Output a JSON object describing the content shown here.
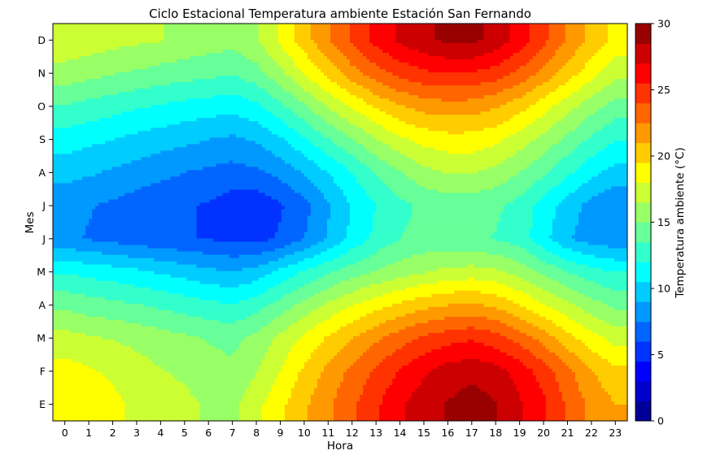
{
  "chart_data": {
    "type": "heatmap",
    "subtype": "filled-contour",
    "title": "Ciclo Estacional Temperatura ambiente Estación San Fernando",
    "xlabel": "Hora",
    "ylabel": "Mes",
    "colorbar_label": "Temperatura ambiente (°C)",
    "colormap": "jet",
    "x": [
      0,
      1,
      2,
      3,
      4,
      5,
      6,
      7,
      8,
      9,
      10,
      11,
      12,
      13,
      14,
      15,
      16,
      17,
      18,
      19,
      20,
      21,
      22,
      23
    ],
    "x_tick_labels": [
      "0",
      "1",
      "2",
      "3",
      "4",
      "5",
      "6",
      "7",
      "8",
      "9",
      "10",
      "11",
      "12",
      "13",
      "14",
      "15",
      "16",
      "17",
      "18",
      "19",
      "20",
      "21",
      "22",
      "23"
    ],
    "y_tick_labels": [
      "E",
      "F",
      "M",
      "A",
      "M",
      "J",
      "J",
      "A",
      "S",
      "O",
      "N",
      "D"
    ],
    "zlim": [
      0,
      30
    ],
    "colorbar_ticks": [
      0,
      5,
      10,
      15,
      20,
      25,
      30
    ],
    "contour_levels": [
      0,
      1.5,
      3,
      4.5,
      6,
      7.5,
      9,
      10.5,
      12,
      13.5,
      15,
      16.5,
      18,
      19.5,
      21,
      22.5,
      24,
      25.5,
      27,
      28.5,
      30
    ],
    "values": [
      [
        19.4,
        18.9,
        18.4,
        17.6,
        17.3,
        16.9,
        16.3,
        16.1,
        17.6,
        19.1,
        20.7,
        22.2,
        23.7,
        25.2,
        26.8,
        27.8,
        28.6,
        29.2,
        28.6,
        27.2,
        25.8,
        23.8,
        22.1,
        21.0
      ],
      [
        18.6,
        18.2,
        17.7,
        17.1,
        16.6,
        16.2,
        15.6,
        15.3,
        16.4,
        18.0,
        19.8,
        21.4,
        22.9,
        24.3,
        25.6,
        26.8,
        27.7,
        28.1,
        27.6,
        26.4,
        24.8,
        22.9,
        21.1,
        19.8
      ],
      [
        17.1,
        16.7,
        16.4,
        16.1,
        15.7,
        15.3,
        14.9,
        14.6,
        15.4,
        16.9,
        18.3,
        19.7,
        21.0,
        22.2,
        23.3,
        24.3,
        24.9,
        25.3,
        24.6,
        23.4,
        21.9,
        20.1,
        18.6,
        17.4
      ],
      [
        14.6,
        14.2,
        13.9,
        13.6,
        13.2,
        12.8,
        12.4,
        12.1,
        12.9,
        14.1,
        15.5,
        16.8,
        17.9,
        18.9,
        19.8,
        20.5,
        21.0,
        21.3,
        20.7,
        19.5,
        18.1,
        16.8,
        15.6,
        14.6
      ],
      [
        11.9,
        11.5,
        11.2,
        10.8,
        10.3,
        9.9,
        9.4,
        9.0,
        9.6,
        10.9,
        12.2,
        13.3,
        14.3,
        15.1,
        15.8,
        16.4,
        16.9,
        17.1,
        16.8,
        15.9,
        14.7,
        13.5,
        12.6,
        12.0
      ],
      [
        7.8,
        7.4,
        7.0,
        6.7,
        6.4,
        6.1,
        5.9,
        5.7,
        5.4,
        6.2,
        7.5,
        9.2,
        10.9,
        12.4,
        13.5,
        13.9,
        13.9,
        13.8,
        13.4,
        12.8,
        11.0,
        9.2,
        8.2,
        7.9
      ],
      [
        8.0,
        7.6,
        7.2,
        6.8,
        6.4,
        6.2,
        5.8,
        5.2,
        4.9,
        5.8,
        7.0,
        8.8,
        10.6,
        12.0,
        13.1,
        13.8,
        14.0,
        14.0,
        13.8,
        12.9,
        11.3,
        9.8,
        8.4,
        7.7
      ],
      [
        9.5,
        9.2,
        8.8,
        8.3,
        7.9,
        7.5,
        7.2,
        6.9,
        7.2,
        8.0,
        9.1,
        10.5,
        12.0,
        13.6,
        14.9,
        16.0,
        16.6,
        16.6,
        16.0,
        15.0,
        13.8,
        12.3,
        10.9,
        9.9
      ],
      [
        11.3,
        10.9,
        10.5,
        10.1,
        9.7,
        9.4,
        9.0,
        8.7,
        9.2,
        10.3,
        11.8,
        13.4,
        14.9,
        16.4,
        17.7,
        18.5,
        18.9,
        18.9,
        18.4,
        17.3,
        16.0,
        14.6,
        13.2,
        12.1
      ],
      [
        13.4,
        13.0,
        12.6,
        12.2,
        11.9,
        11.5,
        11.3,
        11.0,
        11.7,
        13.1,
        14.8,
        16.6,
        18.2,
        19.7,
        20.9,
        21.6,
        21.9,
        21.8,
        21.2,
        20.1,
        18.7,
        17.1,
        15.6,
        14.4
      ],
      [
        15.9,
        15.5,
        15.1,
        14.8,
        14.4,
        14.2,
        13.9,
        13.6,
        14.4,
        16.1,
        18.1,
        20.0,
        21.9,
        23.4,
        24.5,
        25.2,
        25.5,
        25.4,
        24.8,
        23.6,
        22.0,
        20.3,
        18.6,
        17.0
      ],
      [
        17.6,
        17.4,
        17.0,
        16.8,
        16.6,
        16.1,
        15.8,
        15.5,
        16.4,
        18.3,
        20.3,
        22.4,
        24.3,
        26.0,
        27.3,
        28.2,
        28.8,
        28.9,
        28.0,
        26.4,
        24.4,
        22.3,
        20.6,
        19.1
      ]
    ]
  }
}
